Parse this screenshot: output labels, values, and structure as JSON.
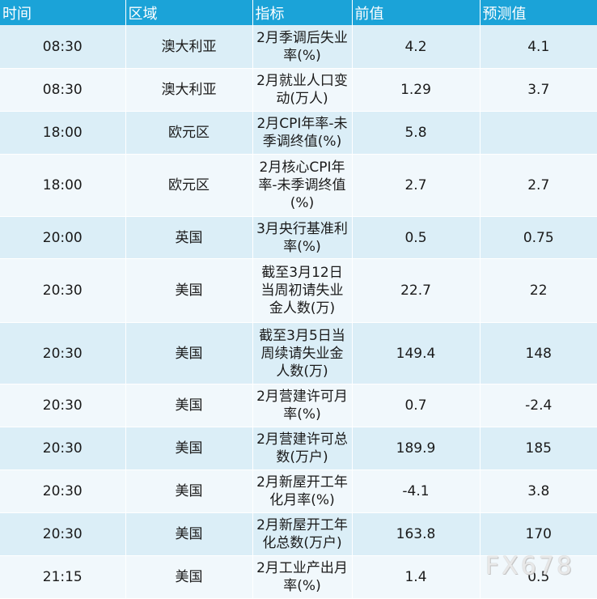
{
  "header": [
    "时间",
    "区域",
    "指标",
    "前值",
    "预测值"
  ],
  "rows": [
    {
      "time": "08:30",
      "region": "澳大利亚",
      "indicator": "2月季调后失业率(%)",
      "previous": "4.2",
      "forecast": "4.1"
    },
    {
      "time": "08:30",
      "region": "澳大利亚",
      "indicator": "2月就业人口变动(万人)",
      "previous": "1.29",
      "forecast": "3.7"
    },
    {
      "time": "18:00",
      "region": "欧元区",
      "indicator": "2月CPI年率-未季调终值(%)",
      "previous": "5.8",
      "forecast": ""
    },
    {
      "time": "18:00",
      "region": "欧元区",
      "indicator": "2月核心CPI年率-未季调终值(%)",
      "previous": "2.7",
      "forecast": "2.7"
    },
    {
      "time": "20:00",
      "region": "英国",
      "indicator": "3月央行基准利率(%)",
      "previous": "0.5",
      "forecast": "0.75"
    },
    {
      "time": "20:30",
      "region": "美国",
      "indicator": "截至3月12日当周初请失业金人数(万)",
      "previous": "22.7",
      "forecast": "22"
    },
    {
      "time": "20:30",
      "region": "美国",
      "indicator": "截至3月5日当周续请失业金人数(万)",
      "previous": "149.4",
      "forecast": "148"
    },
    {
      "time": "20:30",
      "region": "美国",
      "indicator": "2月营建许可月率(%)",
      "previous": "0.7",
      "forecast": "-2.4"
    },
    {
      "time": "20:30",
      "region": "美国",
      "indicator": "2月营建许可总数(万户)",
      "previous": "189.9",
      "forecast": "185"
    },
    {
      "time": "20:30",
      "region": "美国",
      "indicator": "2月新屋开工年化月率(%)",
      "previous": "-4.1",
      "forecast": "3.8"
    },
    {
      "time": "20:30",
      "region": "美国",
      "indicator": "2月新屋开工年化总数(万户)",
      "previous": "163.8",
      "forecast": "170"
    },
    {
      "time": "21:15",
      "region": "美国",
      "indicator": "2月工业产出月率(%)",
      "previous": "1.4",
      "forecast": "0.5"
    }
  ],
  "watermark": "FX678"
}
